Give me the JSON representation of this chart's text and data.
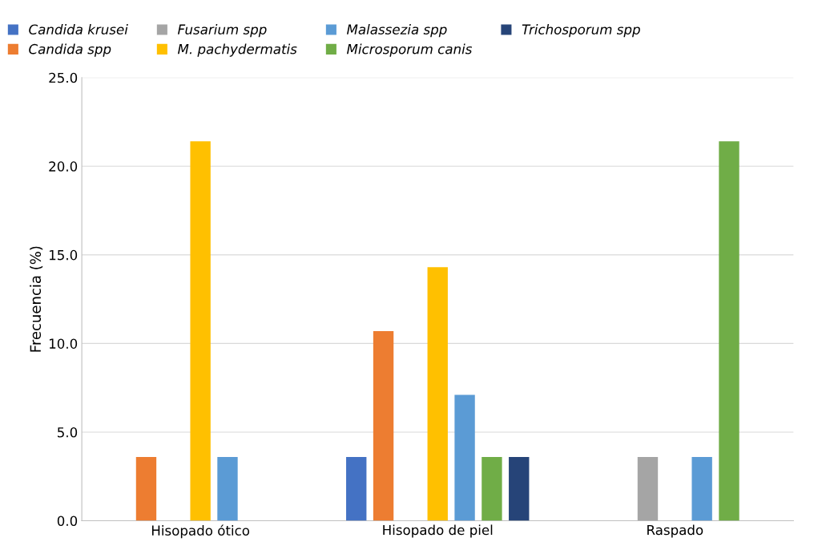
{
  "chart_data": {
    "type": "bar",
    "ylabel": "Frecuencia (%)",
    "categories": [
      "Hisopado ótico",
      "Hisopado de piel",
      "Raspado"
    ],
    "series": [
      {
        "name": "Candida krusei",
        "color": "#4472c4",
        "values": [
          null,
          3.6,
          null
        ]
      },
      {
        "name": "Candida spp",
        "color": "#ed7d31",
        "values": [
          3.6,
          10.7,
          null
        ]
      },
      {
        "name": "Fusarium spp",
        "color": "#a5a5a5",
        "values": [
          null,
          null,
          3.6
        ]
      },
      {
        "name": "M. pachydermatis",
        "color": "#ffc000",
        "values": [
          21.4,
          14.3,
          null
        ]
      },
      {
        "name": "Malassezia spp",
        "color": "#5b9bd5",
        "values": [
          3.6,
          7.1,
          3.6
        ]
      },
      {
        "name": "Microsporum canis",
        "color": "#70ad47",
        "values": [
          null,
          3.6,
          21.4
        ]
      },
      {
        "name": "Trichosporum spp",
        "color": "#264478",
        "values": [
          null,
          3.6,
          null
        ]
      }
    ],
    "ylim": [
      0,
      25
    ],
    "yticks": [
      {
        "value": 0,
        "label": "0.0"
      },
      {
        "value": 5,
        "label": "5.0"
      },
      {
        "value": 10,
        "label": "10.0"
      },
      {
        "value": 15,
        "label": "15.0"
      },
      {
        "value": 20,
        "label": "20.0"
      },
      {
        "value": 25,
        "label": "25.0"
      }
    ],
    "grid": "y",
    "legend": "top"
  }
}
